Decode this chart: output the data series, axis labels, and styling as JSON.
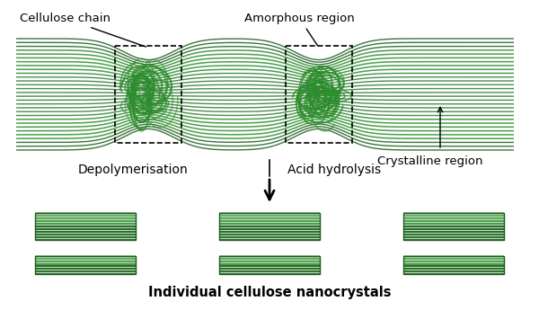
{
  "title": "",
  "bg_color": "#ffffff",
  "dark_green": "#1a5c1a",
  "mid_green": "#2d8c2d",
  "light_green": "#4db84d",
  "fiber_green": "#2a7a2a",
  "fill_green": "#3a9c3a",
  "gradient_light": "#7dc87d",
  "labels": {
    "cellulose_chain": "Cellulose chain",
    "amorphous_region": "Amorphous region",
    "crystalline_region": "Crystalline region",
    "depolymerisation": "Depolymerisation",
    "acid_hydrolysis": "Acid hydrolysis",
    "nanocrystals": "Individual cellulose nanocrystals"
  },
  "arrow_color": "#000000",
  "text_color": "#000000",
  "dashed_box_color": "#000000"
}
